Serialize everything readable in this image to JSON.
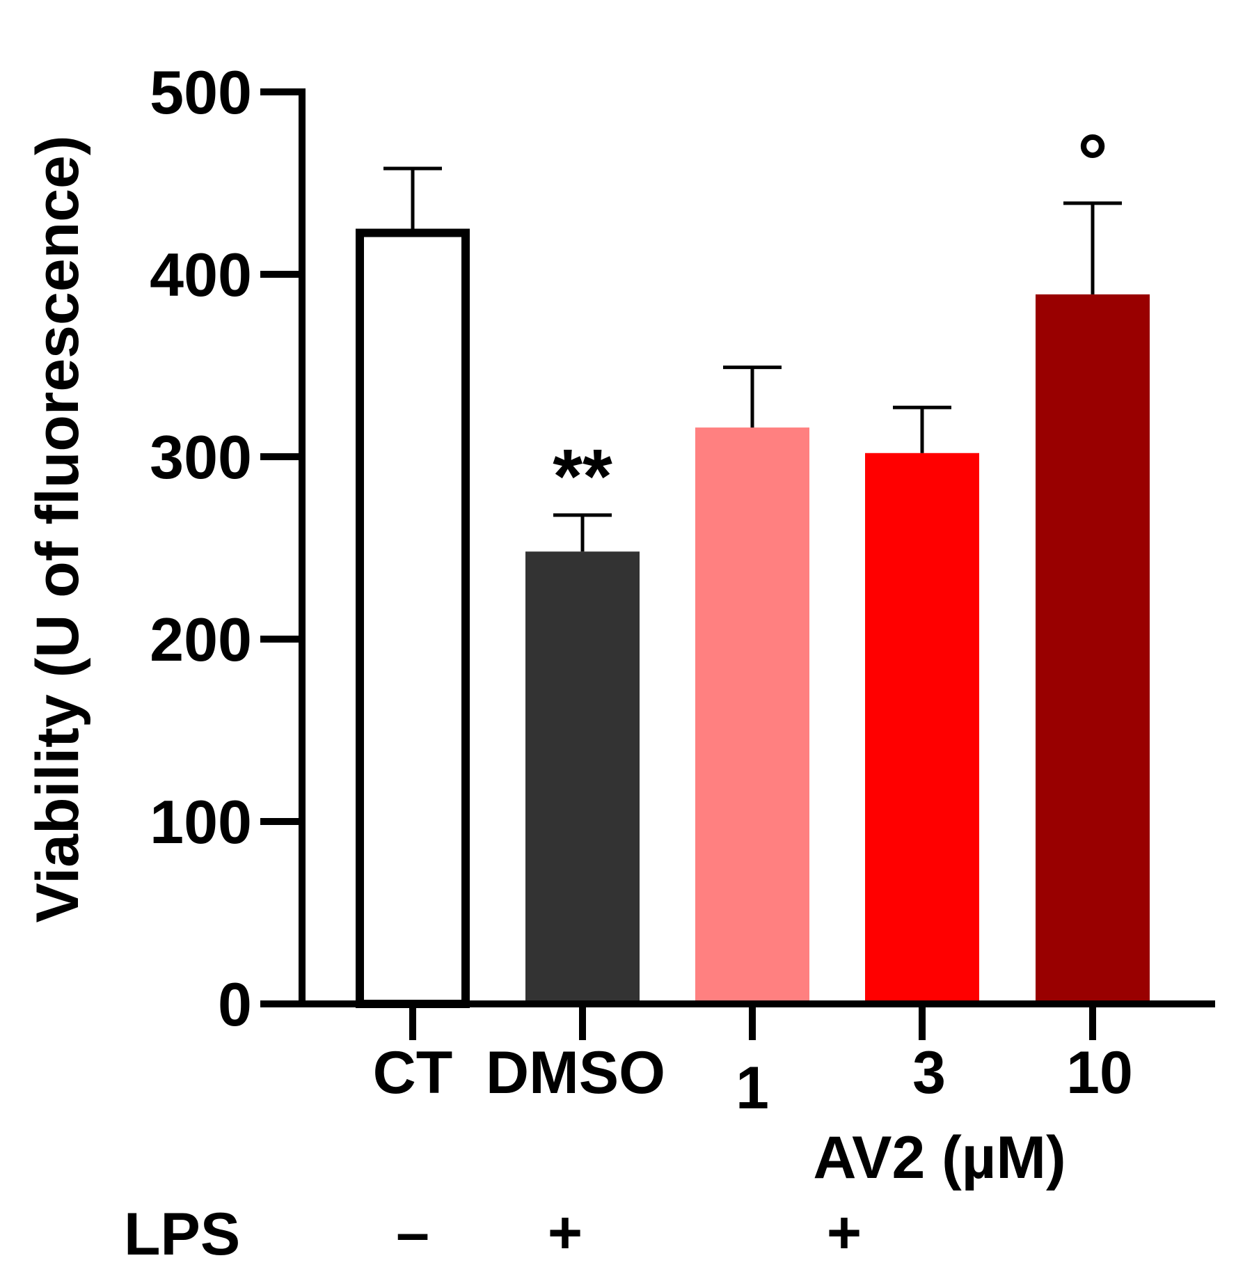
{
  "chart_data": {
    "type": "bar",
    "title": "",
    "ylabel": "Viability (U of fluorescence)",
    "xlabel": "",
    "ylim": [
      0,
      500
    ],
    "yticks": [
      "0",
      "100",
      "200",
      "300",
      "400",
      "500"
    ],
    "categories": [
      "CT",
      "DMSO",
      "1",
      "3",
      "10"
    ],
    "values": [
      425,
      248,
      316,
      302,
      389
    ],
    "errors": [
      33,
      20,
      33,
      25,
      50
    ],
    "colors": [
      "#ffffff",
      "#333333",
      "#ff8080",
      "#ff0000",
      "#990000"
    ],
    "significance": [
      "",
      "**",
      "",
      "",
      "°"
    ],
    "group_label": "AV2 (µM)",
    "lps_row": {
      "label": "LPS",
      "marks": [
        "–",
        "+",
        "+"
      ]
    },
    "grid": false
  }
}
